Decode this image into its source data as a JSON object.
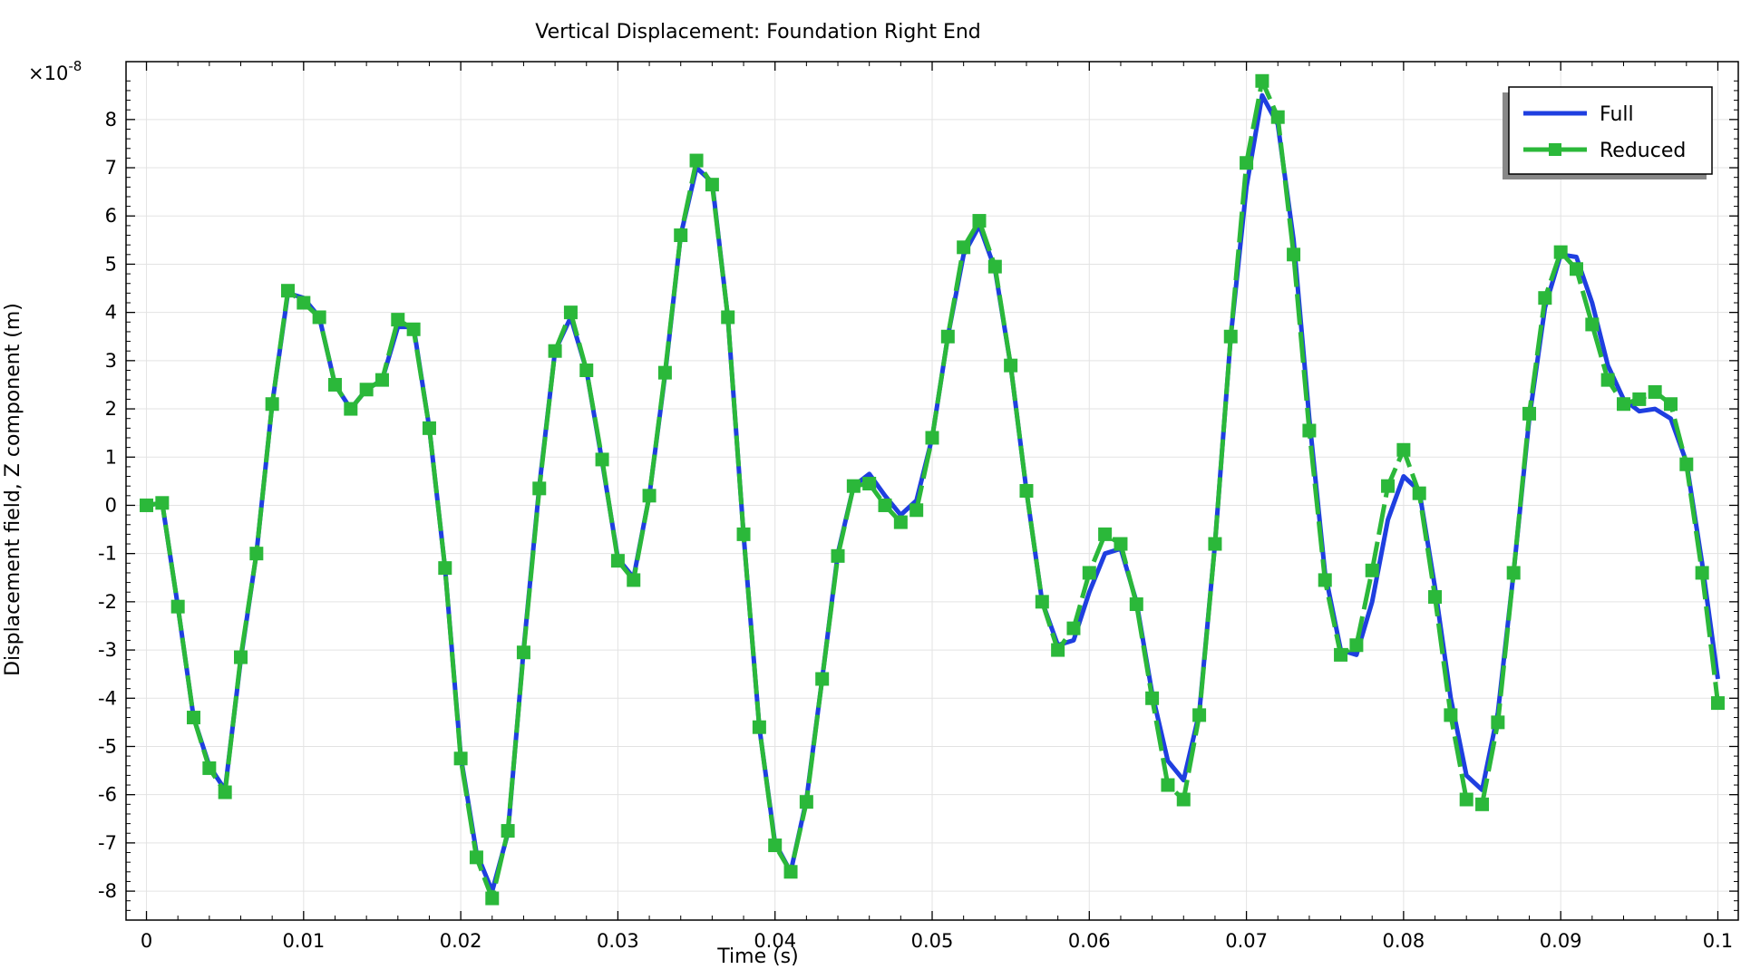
{
  "chart_data": {
    "type": "line",
    "title": "Vertical Displacement: Foundation Right End",
    "xlabel": "Time (s)",
    "ylabel": "Displacement field, Z component (m)",
    "y_multiplier_label": "×10",
    "y_multiplier_exp": "-8",
    "xlim": [
      -0.0013,
      0.1013
    ],
    "ylim": [
      -8.6,
      9.2
    ],
    "x_ticks": [
      0,
      0.01,
      0.02,
      0.03,
      0.04,
      0.05,
      0.06,
      0.07,
      0.08,
      0.09,
      0.1
    ],
    "x_tick_labels": [
      "0",
      "0.01",
      "0.02",
      "0.03",
      "0.04",
      "0.05",
      "0.06",
      "0.07",
      "0.08",
      "0.09",
      "0.1"
    ],
    "y_ticks": [
      -8,
      -7,
      -6,
      -5,
      -4,
      -3,
      -2,
      -1,
      0,
      1,
      2,
      3,
      4,
      5,
      6,
      7,
      8
    ],
    "y_tick_labels": [
      "-8",
      "-7",
      "-6",
      "-5",
      "-4",
      "-3",
      "-2",
      "-1",
      "0",
      "1",
      "2",
      "3",
      "4",
      "5",
      "6",
      "7",
      "8"
    ],
    "grid": true,
    "legend_position": "top-right",
    "x": [
      0,
      0.001,
      0.002,
      0.003,
      0.004,
      0.005,
      0.006,
      0.007,
      0.008,
      0.009,
      0.01,
      0.011,
      0.012,
      0.013,
      0.014,
      0.015,
      0.016,
      0.017,
      0.018,
      0.019,
      0.02,
      0.021,
      0.022,
      0.023,
      0.024,
      0.025,
      0.026,
      0.027,
      0.028,
      0.029,
      0.03,
      0.031,
      0.032,
      0.033,
      0.034,
      0.035,
      0.036,
      0.037,
      0.038,
      0.039,
      0.04,
      0.041,
      0.042,
      0.043,
      0.044,
      0.045,
      0.046,
      0.047,
      0.048,
      0.049,
      0.05,
      0.051,
      0.052,
      0.053,
      0.054,
      0.055,
      0.056,
      0.057,
      0.058,
      0.059,
      0.06,
      0.061,
      0.062,
      0.063,
      0.064,
      0.065,
      0.066,
      0.067,
      0.068,
      0.069,
      0.07,
      0.071,
      0.072,
      0.073,
      0.074,
      0.075,
      0.076,
      0.077,
      0.078,
      0.079,
      0.08,
      0.081,
      0.082,
      0.083,
      0.084,
      0.085,
      0.086,
      0.087,
      0.088,
      0.089,
      0.09,
      0.091,
      0.092,
      0.093,
      0.094,
      0.095,
      0.096,
      0.097,
      0.098,
      0.099,
      0.1
    ],
    "series": [
      {
        "name": "Full",
        "color": "#1f3fe0",
        "marker": "none",
        "values": [
          0,
          0.05,
          -2.1,
          -4.4,
          -5.4,
          -5.9,
          -3.2,
          -1.0,
          2.1,
          4.4,
          4.3,
          3.9,
          2.5,
          2.0,
          2.4,
          2.6,
          3.7,
          3.7,
          1.6,
          -1.3,
          -5.2,
          -7.2,
          -8.0,
          -6.8,
          -3.0,
          0.4,
          3.2,
          3.9,
          2.8,
          0.9,
          -1.1,
          -1.5,
          0.2,
          2.7,
          5.6,
          7.0,
          6.7,
          3.9,
          -0.6,
          -4.6,
          -7.0,
          -7.6,
          -6.1,
          -3.6,
          -1.0,
          0.4,
          0.65,
          0.2,
          -0.2,
          0.1,
          1.4,
          3.5,
          5.2,
          5.8,
          4.9,
          2.9,
          0.3,
          -2.0,
          -2.9,
          -2.8,
          -1.8,
          -1.0,
          -0.9,
          -2.0,
          -3.9,
          -5.3,
          -5.7,
          -4.3,
          -0.8,
          3.5,
          6.6,
          8.5,
          7.9,
          5.5,
          1.8,
          -1.4,
          -3.0,
          -3.1,
          -2.0,
          -0.3,
          0.6,
          0.3,
          -1.7,
          -4.0,
          -5.6,
          -5.9,
          -4.3,
          -1.4,
          1.8,
          4.1,
          5.2,
          5.15,
          4.2,
          2.9,
          2.2,
          1.95,
          2.0,
          1.8,
          0.9,
          -1.2,
          -3.6
        ]
      },
      {
        "name": "Reduced",
        "color": "#2bb83a",
        "marker": "square",
        "values": [
          0,
          0.05,
          -2.1,
          -4.4,
          -5.45,
          -5.95,
          -3.15,
          -1.0,
          2.1,
          4.45,
          4.2,
          3.9,
          2.5,
          2.0,
          2.4,
          2.6,
          3.85,
          3.65,
          1.6,
          -1.3,
          -5.25,
          -7.3,
          -8.15,
          -6.75,
          -3.05,
          0.35,
          3.2,
          4.0,
          2.8,
          0.95,
          -1.15,
          -1.55,
          0.2,
          2.75,
          5.6,
          7.15,
          6.65,
          3.9,
          -0.6,
          -4.6,
          -7.05,
          -7.6,
          -6.15,
          -3.6,
          -1.05,
          0.4,
          0.45,
          0.0,
          -0.35,
          -0.1,
          1.4,
          3.5,
          5.35,
          5.9,
          4.95,
          2.9,
          0.3,
          -2.0,
          -3.0,
          -2.55,
          -1.4,
          -0.6,
          -0.8,
          -2.05,
          -4.0,
          -5.8,
          -6.1,
          -4.35,
          -0.8,
          3.5,
          7.1,
          8.8,
          8.05,
          5.2,
          1.55,
          -1.55,
          -3.1,
          -2.9,
          -1.35,
          0.4,
          1.15,
          0.25,
          -1.9,
          -4.35,
          -6.1,
          -6.2,
          -4.5,
          -1.4,
          1.9,
          4.3,
          5.25,
          4.9,
          3.75,
          2.6,
          2.1,
          2.2,
          2.35,
          2.1,
          0.85,
          -1.4,
          -4.1
        ]
      }
    ]
  }
}
